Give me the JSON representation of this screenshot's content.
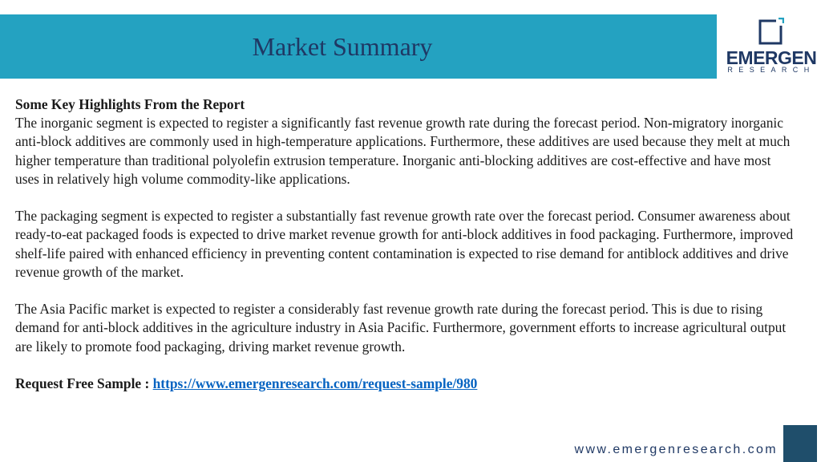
{
  "header": {
    "title": "Market Summary"
  },
  "logo": {
    "word": "EMERGEN",
    "sub": "RESEARCH",
    "icon": "square-frame-icon"
  },
  "content": {
    "heading": "Some Key Highlights From the Report",
    "paragraphs": [
      "The inorganic segment is expected to register a significantly fast revenue growth rate during the forecast period. Non-migratory inorganic anti-block additives are commonly used in high-temperature applications. Furthermore, these additives are used because they melt at much higher temperature than traditional polyolefin extrusion temperature. Inorganic anti-blocking additives are cost-effective and have most uses in relatively high volume commodity-like applications.",
      "The packaging segment is expected to register a substantially fast revenue growth rate over the forecast period. Consumer awareness about ready-to-eat packaged foods is expected to drive market revenue growth for anti-block additives in food packaging. Furthermore, improved shelf-life paired with enhanced efficiency in preventing content contamination is expected to rise demand for antiblock additives and drive revenue growth of the market.",
      "The Asia Pacific market is expected to register a considerably fast revenue growth rate during the forecast period. This is due to rising demand for anti-block additives in the agriculture industry in Asia Pacific. Furthermore, government efforts to increase agricultural output are likely to promote food packaging, driving market revenue growth."
    ],
    "request_label": "Request Free Sample : ",
    "request_link": "https://www.emergenresearch.com/request-sample/980"
  },
  "footer": {
    "url": "www.emergenresearch.com"
  },
  "colors": {
    "header_band": "#24a2c1",
    "title_text": "#1f3864",
    "link": "#0563c1",
    "corner_square": "#1f4e6b"
  }
}
